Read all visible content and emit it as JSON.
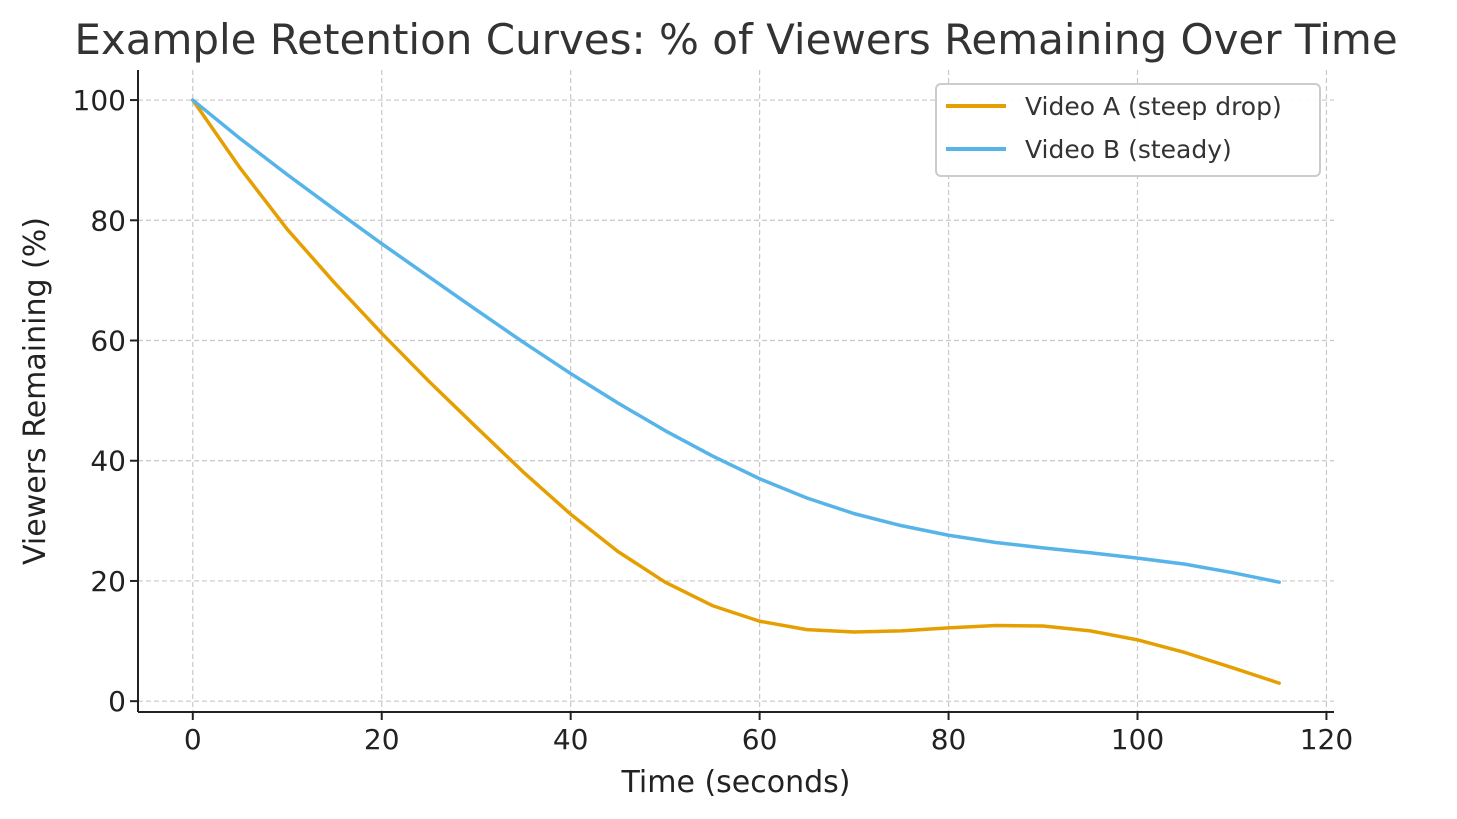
{
  "chart_data": {
    "type": "line",
    "title": "Example Retention Curves: % of Viewers Remaining Over Time",
    "xlabel": "Time (seconds)",
    "ylabel": "Viewers Remaining (%)",
    "xlim": [
      -5.8,
      120.8
    ],
    "ylim": [
      -1.8,
      105
    ],
    "xticks": [
      "0",
      "20",
      "40",
      "60",
      "80",
      "100",
      "120"
    ],
    "yticks": [
      "0",
      "20",
      "40",
      "60",
      "80",
      "100"
    ],
    "grid": true,
    "legend_position": "top-right",
    "x": [
      0,
      5,
      10,
      15,
      20,
      25,
      30,
      35,
      40,
      45,
      50,
      55,
      60,
      65,
      70,
      75,
      80,
      85,
      90,
      95,
      100,
      105,
      110,
      115
    ],
    "series": [
      {
        "name": "Video A (steep drop)",
        "color": "#E69F00",
        "values": [
          100,
          88.7,
          78.5,
          69.6,
          61.2,
          53.2,
          45.6,
          38.1,
          31.1,
          24.9,
          19.8,
          15.9,
          13.3,
          11.9,
          11.5,
          11.7,
          12.2,
          12.6,
          12.5,
          11.7,
          10.2,
          8.1,
          5.6,
          3.0
        ]
      },
      {
        "name": "Video B (steady)",
        "color": "#56B4E9",
        "values": [
          100,
          93.6,
          87.6,
          81.8,
          76.1,
          70.6,
          65.1,
          59.7,
          54.5,
          49.6,
          45.0,
          40.8,
          37.0,
          33.8,
          31.2,
          29.2,
          27.6,
          26.4,
          25.5,
          24.7,
          23.8,
          22.8,
          21.4,
          19.8
        ]
      }
    ]
  }
}
